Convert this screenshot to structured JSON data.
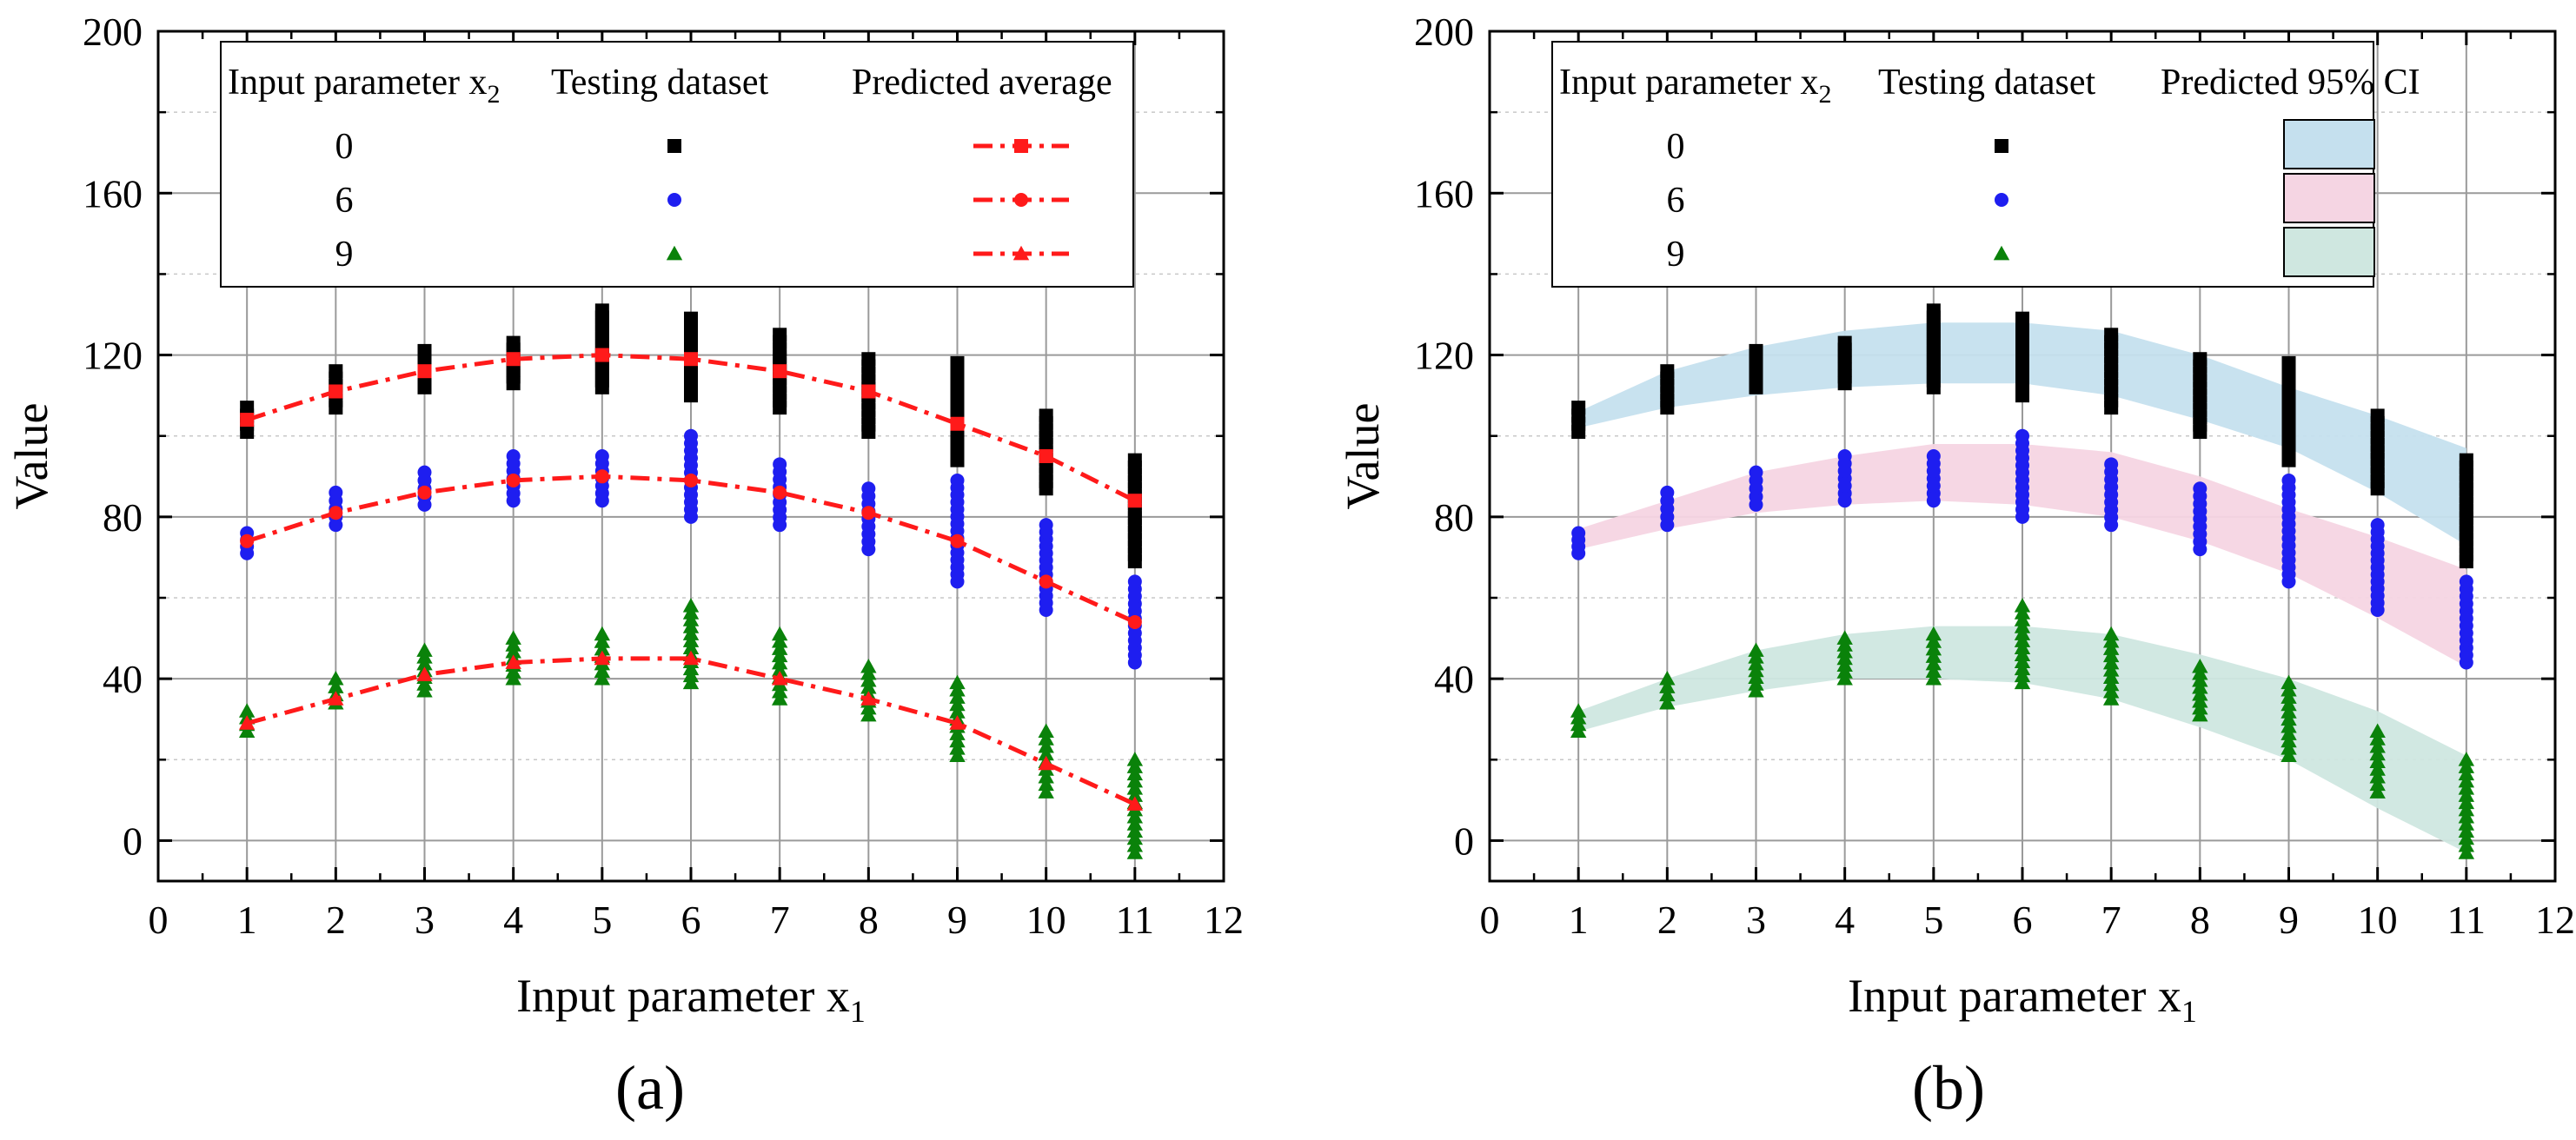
{
  "figure": {
    "panel_labels": [
      "(a)",
      "(b)"
    ]
  },
  "chart_data": [
    {
      "type": "scatter",
      "panel": "a",
      "title": "",
      "xlabel": "Input parameter x",
      "xlabel_subscript": "1",
      "ylabel": "Value",
      "xlim": [
        0,
        12
      ],
      "ylim": [
        -10,
        200
      ],
      "xticks": [
        "0",
        "1",
        "2",
        "3",
        "4",
        "5",
        "6",
        "7",
        "8",
        "9",
        "10",
        "11",
        "12"
      ],
      "yticks": [
        "0",
        "40",
        "80",
        "120",
        "160",
        "200"
      ],
      "grid": true,
      "legend": {
        "placement": "top",
        "headers": [
          "Input parameter x",
          "Testing dataset",
          "Predicted average"
        ],
        "header_subscript": "2",
        "rows": [
          "0",
          "6",
          "9"
        ]
      },
      "series": [
        {
          "name": "0",
          "color": "#000000",
          "marker": "square",
          "x": [
            1,
            2,
            3,
            4,
            5,
            6,
            7,
            8,
            9,
            10,
            11
          ],
          "points_low": [
            101,
            107,
            112,
            113,
            112,
            110,
            107,
            101,
            94,
            87,
            69
          ],
          "points_high": [
            107,
            116,
            121,
            123,
            131,
            129,
            125,
            119,
            118,
            105,
            94
          ],
          "predicted": [
            104,
            111,
            116,
            119,
            120,
            119,
            116,
            111,
            103,
            95,
            84
          ]
        },
        {
          "name": "6",
          "color": "#1e1ef0",
          "marker": "circle",
          "x": [
            1,
            2,
            3,
            4,
            5,
            6,
            7,
            8,
            9,
            10,
            11
          ],
          "points_low": [
            71,
            78,
            83,
            84,
            84,
            80,
            78,
            72,
            64,
            57,
            44
          ],
          "points_high": [
            76,
            86,
            91,
            95,
            95,
            100,
            93,
            87,
            89,
            78,
            64
          ],
          "predicted": [
            74,
            81,
            86,
            89,
            90,
            89,
            86,
            81,
            74,
            64,
            54
          ]
        },
        {
          "name": "9",
          "color": "#0a820a",
          "marker": "triangle",
          "x": [
            1,
            2,
            3,
            4,
            5,
            6,
            7,
            8,
            9,
            10,
            11
          ],
          "points_low": [
            27,
            34,
            37,
            40,
            40,
            39,
            35,
            31,
            21,
            12,
            -3
          ],
          "points_high": [
            32,
            40,
            47,
            50,
            51,
            58,
            51,
            43,
            39,
            27,
            20
          ],
          "predicted": [
            29,
            35,
            41,
            44,
            45,
            45,
            40,
            35,
            29,
            19,
            9
          ]
        }
      ]
    },
    {
      "type": "scatter",
      "panel": "b",
      "title": "",
      "xlabel": "Input parameter x",
      "xlabel_subscript": "1",
      "ylabel": "Value",
      "xlim": [
        0,
        12
      ],
      "ylim": [
        -10,
        200
      ],
      "xticks": [
        "0",
        "1",
        "2",
        "3",
        "4",
        "5",
        "6",
        "7",
        "8",
        "9",
        "10",
        "11",
        "12"
      ],
      "yticks": [
        "0",
        "40",
        "80",
        "120",
        "160",
        "200"
      ],
      "grid": true,
      "legend": {
        "placement": "top",
        "headers": [
          "Input parameter x",
          "Testing dataset",
          "Predicted 95% CI"
        ],
        "header_subscript": "2",
        "rows": [
          "0",
          "6",
          "9"
        ]
      },
      "series": [
        {
          "name": "0",
          "color": "#000000",
          "marker": "square",
          "band_color": "#c5e0ee",
          "x": [
            1,
            2,
            3,
            4,
            5,
            6,
            7,
            8,
            9,
            10,
            11
          ],
          "points_low": [
            101,
            107,
            112,
            113,
            112,
            110,
            107,
            101,
            94,
            87,
            69
          ],
          "points_high": [
            107,
            116,
            121,
            123,
            131,
            129,
            125,
            119,
            118,
            105,
            94
          ],
          "ci_lower": [
            102,
            107,
            110,
            112,
            113,
            113,
            110,
            104,
            97,
            86,
            73
          ],
          "ci_upper": [
            106,
            116,
            122,
            126,
            128,
            128,
            126,
            120,
            112,
            105,
            97
          ]
        },
        {
          "name": "6",
          "color": "#1e1ef0",
          "marker": "circle",
          "band_color": "#f5d5e3",
          "x": [
            1,
            2,
            3,
            4,
            5,
            6,
            7,
            8,
            9,
            10,
            11
          ],
          "points_low": [
            71,
            78,
            83,
            84,
            84,
            80,
            78,
            72,
            64,
            57,
            44
          ],
          "points_high": [
            76,
            86,
            91,
            95,
            95,
            100,
            93,
            87,
            89,
            78,
            64
          ],
          "ci_lower": [
            72,
            77,
            81,
            83,
            84,
            83,
            80,
            74,
            66,
            55,
            43
          ],
          "ci_upper": [
            77,
            84,
            91,
            95,
            98,
            98,
            96,
            90,
            82,
            75,
            67
          ]
        },
        {
          "name": "9",
          "color": "#0a820a",
          "marker": "triangle",
          "band_color": "#cfe7e0",
          "x": [
            1,
            2,
            3,
            4,
            5,
            6,
            7,
            8,
            9,
            10,
            11
          ],
          "points_low": [
            27,
            34,
            37,
            40,
            40,
            39,
            35,
            31,
            21,
            12,
            -3
          ],
          "points_high": [
            32,
            40,
            47,
            50,
            51,
            58,
            51,
            43,
            39,
            27,
            20
          ],
          "ci_lower": [
            27,
            33,
            37,
            40,
            40,
            39,
            35,
            28,
            20,
            8,
            -3
          ],
          "ci_upper": [
            32,
            40,
            47,
            51,
            53,
            53,
            51,
            46,
            40,
            32,
            21
          ]
        }
      ]
    }
  ]
}
